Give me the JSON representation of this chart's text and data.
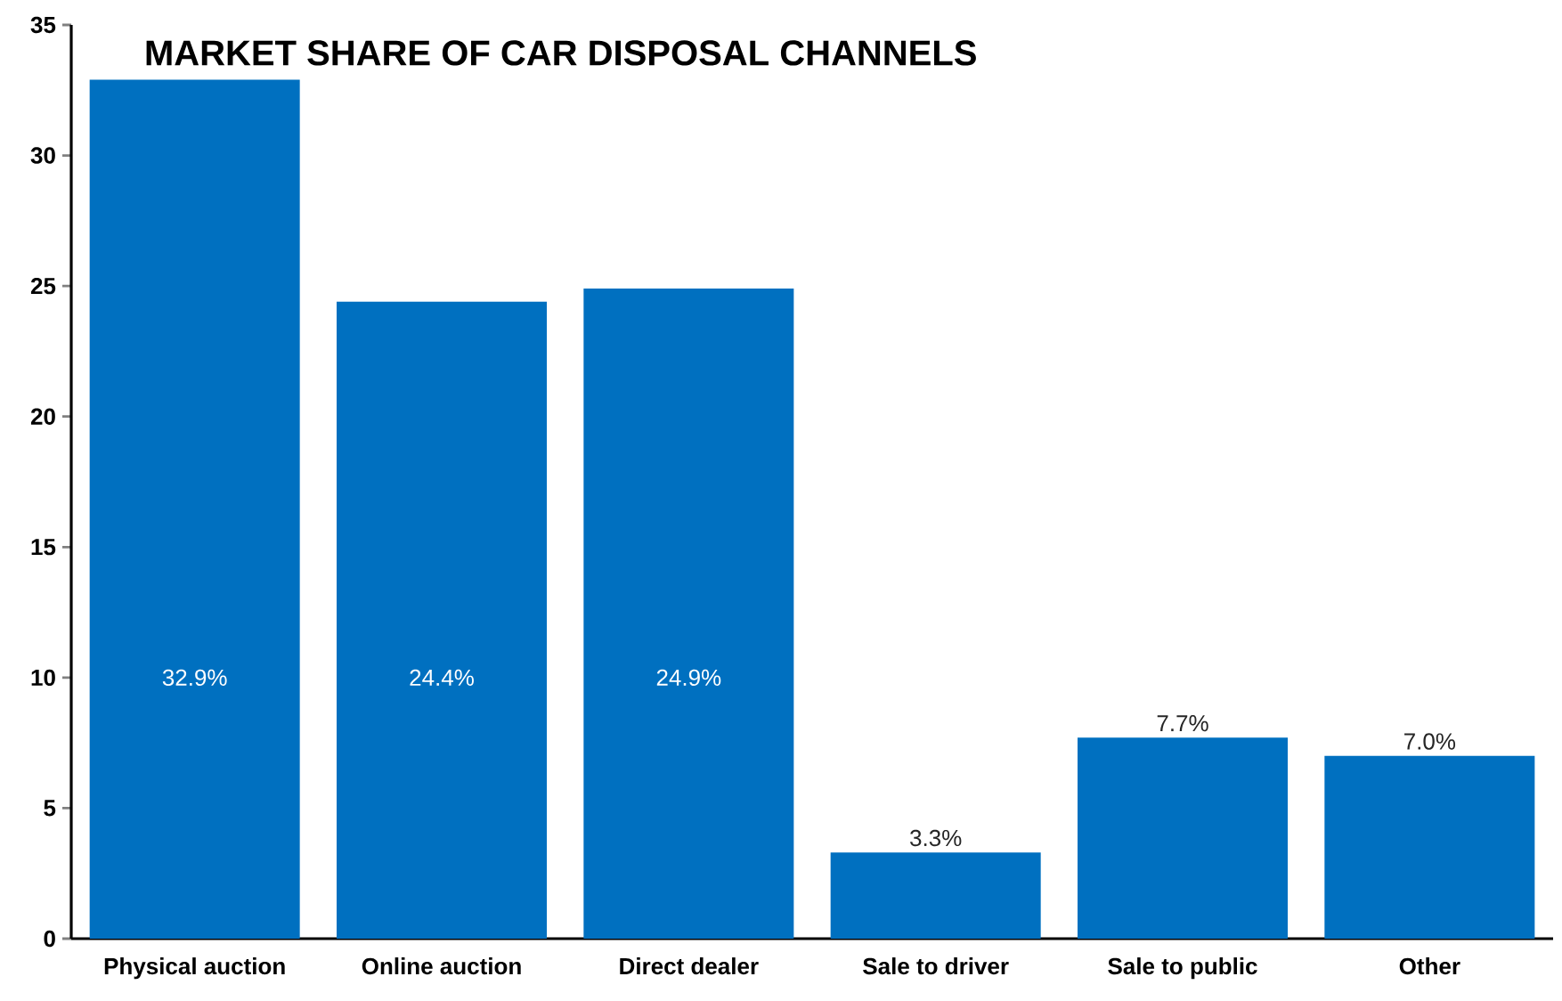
{
  "chart_data": {
    "type": "bar",
    "title": "MARKET SHARE OF CAR DISPOSAL CHANNELS",
    "categories": [
      "Physical auction",
      "Online auction",
      "Direct dealer",
      "Sale to driver",
      "Sale to public",
      "Other"
    ],
    "values": [
      32.9,
      24.4,
      24.9,
      3.3,
      7.7,
      7.0
    ],
    "value_labels": [
      "32.9%",
      "24.4%",
      "24.9%",
      "3.3%",
      "7.7%",
      "7.0%"
    ],
    "color": "#0070c0",
    "ylim": [
      0,
      35
    ],
    "yticks": [
      0,
      5,
      10,
      15,
      20,
      25,
      30,
      35
    ]
  }
}
